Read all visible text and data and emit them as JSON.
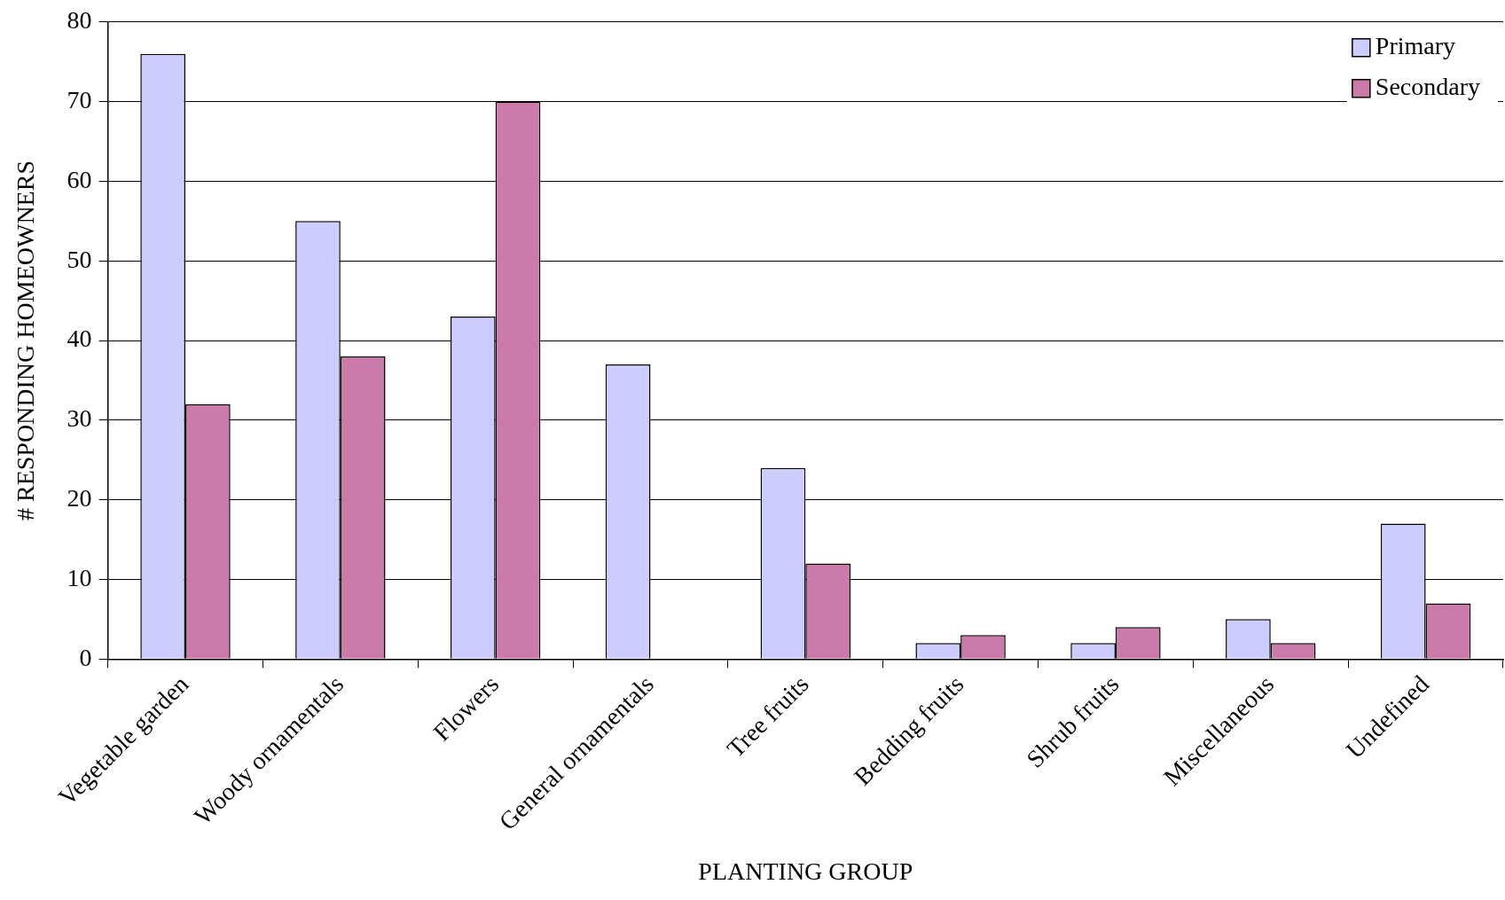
{
  "chart_data": {
    "type": "bar",
    "xlabel": "PLANTING GROUP",
    "ylabel": "# RESPONDING HOMEOWNERS",
    "categories": [
      "Vegetable garden",
      "Woody ornamentals",
      "Flowers",
      "General ornamentals",
      "Tree fruits",
      "Bedding fruits",
      "Shrub fruits",
      "Miscellaneous",
      "Undefined"
    ],
    "series": [
      {
        "name": "Primary",
        "color": "#ccccff",
        "values": [
          76,
          55,
          43,
          37,
          24,
          2,
          2,
          5,
          17
        ]
      },
      {
        "name": "Secondary",
        "color": "#cc7aaa",
        "values": [
          32,
          38,
          70,
          null,
          12,
          3,
          4,
          2,
          7
        ]
      }
    ],
    "ylim": [
      0,
      80
    ],
    "yticks": [
      0,
      10,
      20,
      30,
      40,
      50,
      60,
      70,
      80
    ],
    "grid": "y",
    "legend": "top right"
  }
}
